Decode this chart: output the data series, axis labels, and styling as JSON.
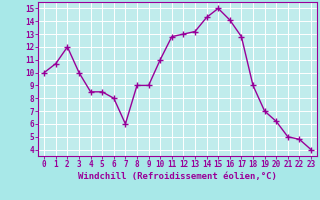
{
  "x": [
    0,
    1,
    2,
    3,
    4,
    5,
    6,
    7,
    8,
    9,
    10,
    11,
    12,
    13,
    14,
    15,
    16,
    17,
    18,
    19,
    20,
    21,
    22,
    23
  ],
  "y": [
    10.0,
    10.7,
    12.0,
    10.0,
    8.5,
    8.5,
    8.0,
    6.0,
    9.0,
    9.0,
    11.0,
    12.8,
    13.0,
    13.2,
    14.3,
    15.0,
    14.1,
    12.8,
    9.0,
    7.0,
    6.2,
    5.0,
    4.8,
    4.0
  ],
  "color": "#990099",
  "bg_color": "#a8e8e8",
  "plot_bg": "#c0ecec",
  "grid_color": "#ffffff",
  "ylabel_ticks": [
    4,
    5,
    6,
    7,
    8,
    9,
    10,
    11,
    12,
    13,
    14,
    15
  ],
  "ylim": [
    3.5,
    15.5
  ],
  "xlim": [
    -0.5,
    23.5
  ],
  "xlabel": "Windchill (Refroidissement éolien,°C)",
  "marker": "+",
  "linewidth": 1.0,
  "markersize": 4,
  "tick_fontsize": 5.5,
  "xlabel_fontsize": 6.5
}
